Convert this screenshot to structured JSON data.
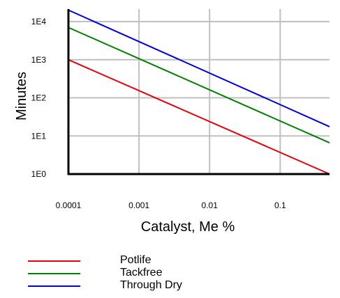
{
  "chart_data": {
    "type": "line",
    "title": "",
    "xlabel": "Catalyst, Me %",
    "ylabel": "Minutes",
    "x_scale": "log",
    "y_scale": "log",
    "xlim": [
      0.0001,
      0.5
    ],
    "ylim": [
      1,
      10000
    ],
    "x_ticks": [
      {
        "value": 0.0001,
        "label": "0.0001"
      },
      {
        "value": 0.001,
        "label": "0.001"
      },
      {
        "value": 0.01,
        "label": "0.01"
      },
      {
        "value": 0.1,
        "label": "0.1"
      }
    ],
    "y_ticks": [
      {
        "value": 1,
        "label": "1E0"
      },
      {
        "value": 10,
        "label": "1E1"
      },
      {
        "value": 100,
        "label": "1E2"
      },
      {
        "value": 1000,
        "label": "1E3"
      },
      {
        "value": 10000,
        "label": "1E4"
      }
    ],
    "grid": true,
    "legend_position": "bottom-left",
    "series": [
      {
        "name": "Potlife",
        "color": "#e8000b",
        "points": [
          {
            "x": 0.0001,
            "y": 1000
          },
          {
            "x": 0.5,
            "y": 1
          }
        ]
      },
      {
        "name": "Tackfree",
        "color": "#008000",
        "points": [
          {
            "x": 0.0001,
            "y": 7000
          },
          {
            "x": 0.5,
            "y": 6.6
          }
        ]
      },
      {
        "name": "Through Dry",
        "color": "#0000e0",
        "points": [
          {
            "x": 0.0001,
            "y": 20000
          },
          {
            "x": 0.5,
            "y": 17.5
          }
        ]
      }
    ]
  }
}
